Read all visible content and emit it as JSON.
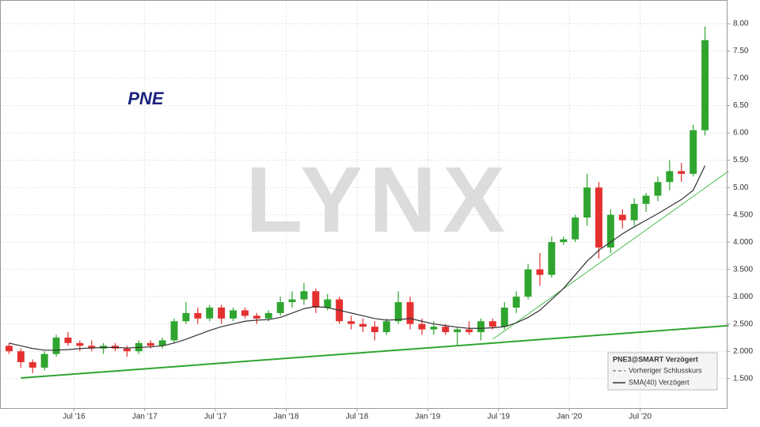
{
  "chart_data": {
    "type": "candlestick",
    "title": "PNE",
    "watermark": "LYNX",
    "x": [
      "2016-01",
      "2016-02",
      "2016-03",
      "2016-04",
      "2016-05",
      "2016-06",
      "2016-07",
      "2016-08",
      "2016-09",
      "2016-10",
      "2016-11",
      "2016-12",
      "2017-01",
      "2017-02",
      "2017-03",
      "2017-04",
      "2017-05",
      "2017-06",
      "2017-07",
      "2017-08",
      "2017-09",
      "2017-10",
      "2017-11",
      "2017-12",
      "2018-01",
      "2018-02",
      "2018-03",
      "2018-04",
      "2018-05",
      "2018-06",
      "2018-07",
      "2018-08",
      "2018-09",
      "2018-10",
      "2018-11",
      "2018-12",
      "2019-01",
      "2019-02",
      "2019-03",
      "2019-04",
      "2019-05",
      "2019-06",
      "2019-07",
      "2019-08",
      "2019-09",
      "2019-10",
      "2019-11",
      "2019-12",
      "2020-01",
      "2020-02",
      "2020-03",
      "2020-04",
      "2020-05",
      "2020-06",
      "2020-07",
      "2020-08",
      "2020-09",
      "2020-10",
      "2020-11",
      "2020-12"
    ],
    "open": [
      2.1,
      2.0,
      1.8,
      1.7,
      1.95,
      2.25,
      2.15,
      2.1,
      2.05,
      2.1,
      2.05,
      2.0,
      2.15,
      2.1,
      2.2,
      2.55,
      2.7,
      2.6,
      2.8,
      2.6,
      2.75,
      2.65,
      2.6,
      2.7,
      2.9,
      2.95,
      3.1,
      2.8,
      2.95,
      2.55,
      2.5,
      2.45,
      2.35,
      2.55,
      2.9,
      2.5,
      2.4,
      2.45,
      2.35,
      2.4,
      2.35,
      2.55,
      2.45,
      2.8,
      3.0,
      3.5,
      3.4,
      4.0,
      4.05,
      4.45,
      5.0,
      3.9,
      4.5,
      4.4,
      4.7,
      4.85,
      5.1,
      5.3,
      5.25,
      6.05
    ],
    "high": [
      2.15,
      2.05,
      1.85,
      2.0,
      2.3,
      2.35,
      2.2,
      2.2,
      2.15,
      2.15,
      2.1,
      2.2,
      2.2,
      2.25,
      2.6,
      2.9,
      2.8,
      2.85,
      2.85,
      2.8,
      2.8,
      2.7,
      2.75,
      3.0,
      3.1,
      3.25,
      3.15,
      3.05,
      3.0,
      2.65,
      2.6,
      2.55,
      2.6,
      3.1,
      3.0,
      2.6,
      2.55,
      2.5,
      2.45,
      2.55,
      2.6,
      2.6,
      2.9,
      3.1,
      3.6,
      3.8,
      4.1,
      4.1,
      4.5,
      5.25,
      5.1,
      4.6,
      4.6,
      4.8,
      4.9,
      5.2,
      5.5,
      5.45,
      6.15,
      7.95
    ],
    "low": [
      1.95,
      1.7,
      1.6,
      1.65,
      1.9,
      2.1,
      2.0,
      2.0,
      1.95,
      2.0,
      1.9,
      1.95,
      2.05,
      2.05,
      2.15,
      2.5,
      2.5,
      2.55,
      2.5,
      2.55,
      2.6,
      2.5,
      2.55,
      2.65,
      2.8,
      2.85,
      2.7,
      2.75,
      2.5,
      2.4,
      2.35,
      2.2,
      2.3,
      2.5,
      2.4,
      2.3,
      2.3,
      2.3,
      2.1,
      2.3,
      2.2,
      2.4,
      2.4,
      2.7,
      2.95,
      3.2,
      3.35,
      3.95,
      4.0,
      4.3,
      3.7,
      3.8,
      4.25,
      4.3,
      4.55,
      4.75,
      4.95,
      5.1,
      5.2,
      5.95
    ],
    "close": [
      2.0,
      1.8,
      1.7,
      1.95,
      2.25,
      2.15,
      2.1,
      2.05,
      2.1,
      2.05,
      2.0,
      2.15,
      2.1,
      2.2,
      2.55,
      2.7,
      2.6,
      2.8,
      2.6,
      2.75,
      2.65,
      2.6,
      2.7,
      2.9,
      2.95,
      3.1,
      2.8,
      2.95,
      2.55,
      2.5,
      2.45,
      2.35,
      2.55,
      2.9,
      2.5,
      2.4,
      2.45,
      2.35,
      2.4,
      2.35,
      2.55,
      2.45,
      2.8,
      3.0,
      3.5,
      3.4,
      4.0,
      4.05,
      4.45,
      5.0,
      3.9,
      4.5,
      4.4,
      4.7,
      4.85,
      5.1,
      5.3,
      5.25,
      6.05,
      7.7
    ],
    "up_color": "#2fa52f",
    "down_color": "#e53030",
    "series": [
      {
        "name": "SMA(40) Verzögert",
        "color": "#333333",
        "values": [
          2.15,
          2.1,
          2.05,
          2.02,
          2.02,
          2.03,
          2.05,
          2.06,
          2.07,
          2.07,
          2.06,
          2.07,
          2.08,
          2.1,
          2.15,
          2.22,
          2.3,
          2.38,
          2.45,
          2.5,
          2.55,
          2.57,
          2.58,
          2.62,
          2.7,
          2.78,
          2.82,
          2.8,
          2.75,
          2.7,
          2.65,
          2.6,
          2.57,
          2.58,
          2.6,
          2.55,
          2.5,
          2.47,
          2.44,
          2.42,
          2.42,
          2.43,
          2.45,
          2.52,
          2.62,
          2.75,
          2.95,
          3.15,
          3.4,
          3.65,
          3.85,
          4.0,
          4.15,
          4.28,
          4.4,
          4.52,
          4.65,
          4.78,
          4.95,
          5.4
        ]
      }
    ],
    "trendlines": [
      {
        "x": [
          "2016-02",
          "2021-02"
        ],
        "values": [
          1.51,
          2.47
        ],
        "color": "#2fa52f",
        "width": 2
      },
      {
        "x": [
          "2019-06",
          "2021-02"
        ],
        "values": [
          2.22,
          5.3
        ],
        "color": "#4cc04c",
        "width": 1
      }
    ],
    "legend_title": "PNE3@SMART Verzögert",
    "reference_legend": [
      {
        "name": "Vorheriger Schlusskurs",
        "color": "#555555"
      }
    ],
    "xlim": [
      "2016-01",
      "2021-01"
    ],
    "xticks": [
      {
        "value": "2016-07",
        "label": "Jul '16"
      },
      {
        "value": "2017-01",
        "label": "Jan '17"
      },
      {
        "value": "2017-07",
        "label": "Jul '17"
      },
      {
        "value": "2018-01",
        "label": "Jan '18"
      },
      {
        "value": "2018-07",
        "label": "Jul '18"
      },
      {
        "value": "2019-01",
        "label": "Jan '19"
      },
      {
        "value": "2019-07",
        "label": "Jul '19"
      },
      {
        "value": "2020-01",
        "label": "Jan '20"
      },
      {
        "value": "2020-07",
        "label": "Jul '20"
      }
    ],
    "ylim": [
      0.96,
      8.435
    ],
    "yticks": [
      {
        "value": 1.5,
        "label": "1.500"
      },
      {
        "value": 2,
        "label": "2.000"
      },
      {
        "value": 2.5,
        "label": "2.500"
      },
      {
        "value": 3,
        "label": "3.000"
      },
      {
        "value": 3.5,
        "label": "3.500"
      },
      {
        "value": 4,
        "label": "4.000"
      },
      {
        "value": 4.5,
        "label": "4.500"
      },
      {
        "value": 5,
        "label": "5.00"
      },
      {
        "value": 5.5,
        "label": "5.50"
      },
      {
        "value": 6,
        "label": "6.00"
      },
      {
        "value": 6.5,
        "label": "6.50"
      },
      {
        "value": 7,
        "label": "7.00"
      },
      {
        "value": 7.5,
        "label": "7.50"
      },
      {
        "value": 8,
        "label": "8.00"
      }
    ],
    "grid": true
  }
}
